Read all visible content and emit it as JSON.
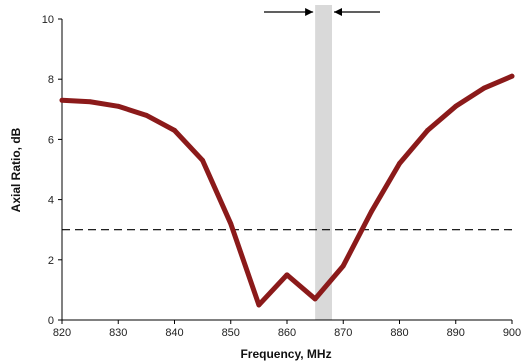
{
  "chart_data": {
    "type": "line",
    "title": "",
    "xlabel": "Frequency, MHz",
    "ylabel": "Axial Ratio, dB",
    "xlim": [
      820,
      900
    ],
    "ylim": [
      0,
      10
    ],
    "x_ticks": [
      820,
      830,
      840,
      850,
      860,
      870,
      880,
      890,
      900
    ],
    "y_ticks": [
      0,
      2,
      4,
      6,
      8,
      10
    ],
    "grid": false,
    "legend": "none",
    "series": [
      {
        "x": [
          820,
          825,
          830,
          835,
          840,
          845,
          850,
          855,
          860,
          865,
          870,
          875,
          880,
          885,
          890,
          895,
          900
        ],
        "y": [
          7.3,
          7.25,
          7.1,
          6.8,
          6.3,
          5.3,
          3.2,
          0.5,
          1.5,
          0.7,
          1.8,
          3.6,
          5.2,
          6.3,
          7.1,
          7.7,
          8.1
        ],
        "color": "#8b1a1a"
      }
    ],
    "reference_line": {
      "y": 3,
      "style": "dashed",
      "color": "#000000"
    },
    "highlight_band": {
      "x_start": 865,
      "x_end": 868,
      "color": "#d9d9d9"
    },
    "band_arrows": {
      "color": "#000000",
      "direction": "inward"
    }
  }
}
